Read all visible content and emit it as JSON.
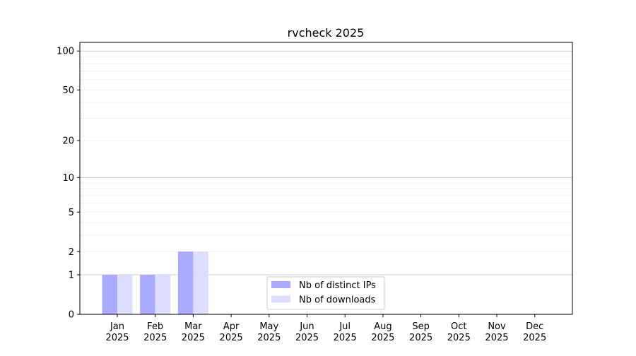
{
  "chart_data": {
    "type": "bar",
    "title": "rvcheck 2025",
    "xlabel": "",
    "ylabel": "",
    "yscale": "symlog",
    "ylim": [
      0,
      116
    ],
    "yticks": [
      0,
      1,
      2,
      5,
      10,
      20,
      50,
      100
    ],
    "ytick_labels": [
      "0",
      "1",
      "2",
      "5",
      "10",
      "20",
      "50",
      "100"
    ],
    "grid": true,
    "legend_position": "lower-center",
    "categories": [
      "Jan\n2025",
      "Feb\n2025",
      "Mar\n2025",
      "Apr\n2025",
      "May\n2025",
      "Jun\n2025",
      "Jul\n2025",
      "Aug\n2025",
      "Sep\n2025",
      "Oct\n2025",
      "Nov\n2025",
      "Dec\n2025"
    ],
    "category_labels": [
      [
        "Jan",
        "2025"
      ],
      [
        "Feb",
        "2025"
      ],
      [
        "Mar",
        "2025"
      ],
      [
        "Apr",
        "2025"
      ],
      [
        "May",
        "2025"
      ],
      [
        "Jun",
        "2025"
      ],
      [
        "Jul",
        "2025"
      ],
      [
        "Aug",
        "2025"
      ],
      [
        "Sep",
        "2025"
      ],
      [
        "Oct",
        "2025"
      ],
      [
        "Nov",
        "2025"
      ],
      [
        "Dec",
        "2025"
      ]
    ],
    "series": [
      {
        "name": "Nb of distinct IPs",
        "color": "#aaaaff",
        "values": [
          1,
          1,
          2,
          0,
          0,
          0,
          0,
          0,
          0,
          0,
          0,
          0
        ]
      },
      {
        "name": "Nb of downloads",
        "color": "#ddddff",
        "values": [
          1,
          1,
          2,
          0,
          0,
          0,
          0,
          0,
          0,
          0,
          0,
          0
        ]
      }
    ]
  }
}
